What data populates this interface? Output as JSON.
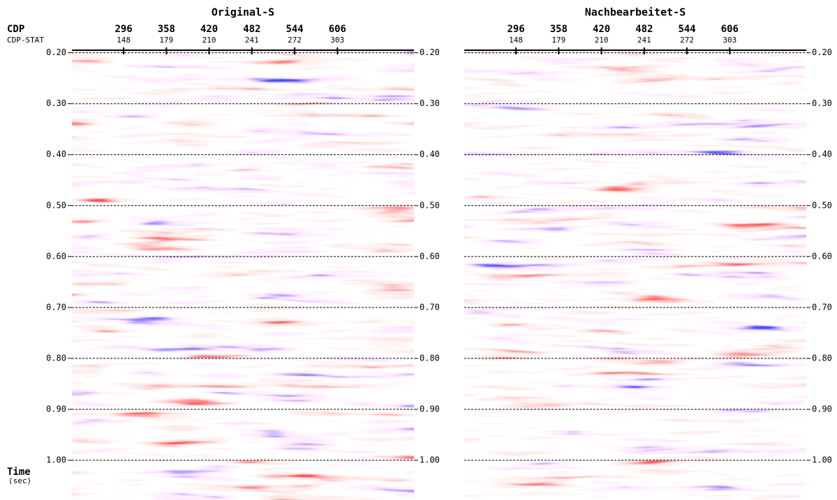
{
  "cdp_label": "CDP",
  "stat_label": "CDP-STAT",
  "time_label": "Time",
  "time_unit": "(sec)",
  "panels": [
    {
      "title": "Original-S",
      "xlim": [
        221,
        717
      ],
      "ylim": [
        0.195,
        1.078
      ],
      "cdp_ticks": [
        296,
        358,
        420,
        482,
        544,
        606
      ],
      "stat_ticks": [
        148,
        179,
        210,
        241,
        272,
        303
      ],
      "time_ticks": [
        {
          "value": 0.2,
          "label": "0.20"
        },
        {
          "value": 0.3,
          "label": "0.30"
        },
        {
          "value": 0.4,
          "label": "0.40"
        },
        {
          "value": 0.5,
          "label": "0.50"
        },
        {
          "value": 0.6,
          "label": "0.60"
        },
        {
          "value": 0.7,
          "label": "0.70"
        },
        {
          "value": 0.8,
          "label": "0.80"
        },
        {
          "value": 0.9,
          "label": "0.90"
        },
        {
          "value": 1.0,
          "label": "1.00"
        }
      ]
    },
    {
      "title": "Nachbearbeitet-S",
      "xlim": [
        221,
        717
      ],
      "ylim": [
        0.195,
        1.078
      ],
      "cdp_ticks": [
        296,
        358,
        420,
        482,
        544,
        606
      ],
      "stat_ticks": [
        148,
        179,
        210,
        241,
        272,
        303
      ],
      "time_ticks": [
        {
          "value": 0.2,
          "label": "0.20"
        },
        {
          "value": 0.3,
          "label": "0.30"
        },
        {
          "value": 0.4,
          "label": "0.40"
        },
        {
          "value": 0.5,
          "label": "0.50"
        },
        {
          "value": 0.6,
          "label": "0.60"
        },
        {
          "value": 0.7,
          "label": "0.70"
        },
        {
          "value": 0.8,
          "label": "0.80"
        },
        {
          "value": 0.9,
          "label": "0.90"
        },
        {
          "value": 1.0,
          "label": "1.00"
        }
      ]
    }
  ]
}
